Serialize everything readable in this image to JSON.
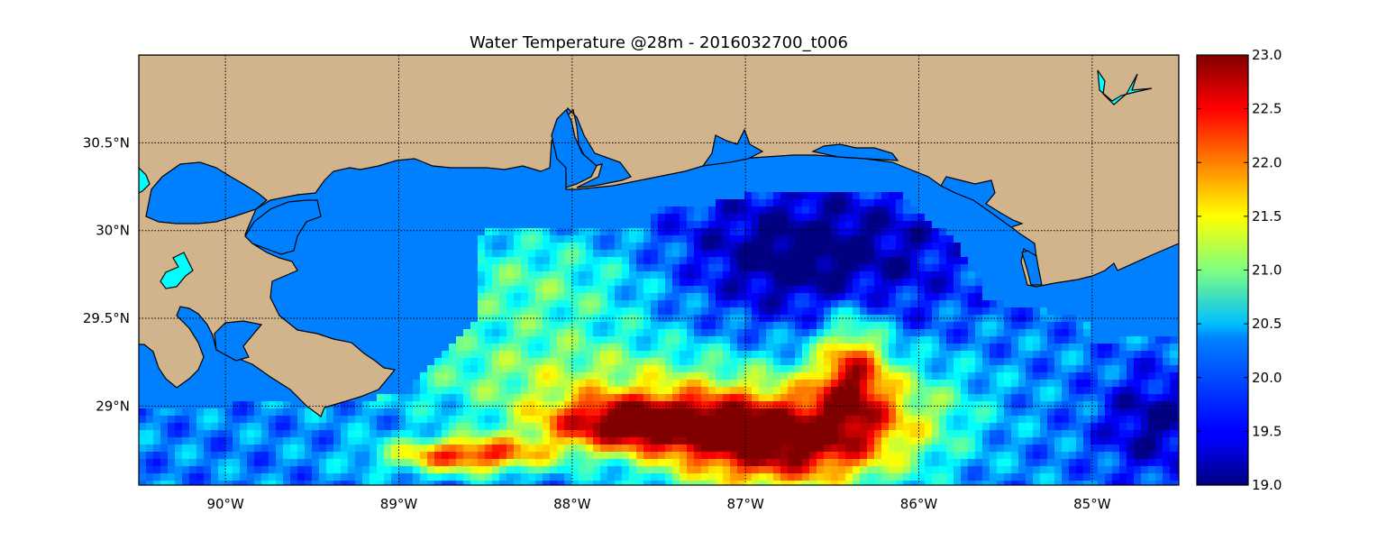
{
  "title": "Water Temperature @28m - 2016032700_t006",
  "map": {
    "lon_range": [
      -90.5,
      -84.5
    ],
    "lat_range": [
      28.55,
      31.0
    ],
    "lon_ticks": [
      {
        "value": -90,
        "label": "90°W"
      },
      {
        "value": -89,
        "label": "89°W"
      },
      {
        "value": -88,
        "label": "88°W"
      },
      {
        "value": -87,
        "label": "87°W"
      },
      {
        "value": -86,
        "label": "86°W"
      },
      {
        "value": -85,
        "label": "85°W"
      }
    ],
    "lat_ticks": [
      {
        "value": 30.5,
        "label": "30.5°N"
      },
      {
        "value": 30.0,
        "label": "30°N"
      },
      {
        "value": 29.5,
        "label": "29.5°N"
      },
      {
        "value": 29.0,
        "label": "29°N"
      }
    ],
    "grid": true,
    "land_color": "#d2b48c",
    "lake_color": "#00ffff",
    "nodata_color": "#0080ff"
  },
  "colorbar": {
    "min": 19.0,
    "max": 23.0,
    "colormap": "jet",
    "ticks": [
      "19.0",
      "19.5",
      "20.0",
      "20.5",
      "21.0",
      "21.5",
      "22.0",
      "22.5",
      "23.0"
    ]
  }
}
